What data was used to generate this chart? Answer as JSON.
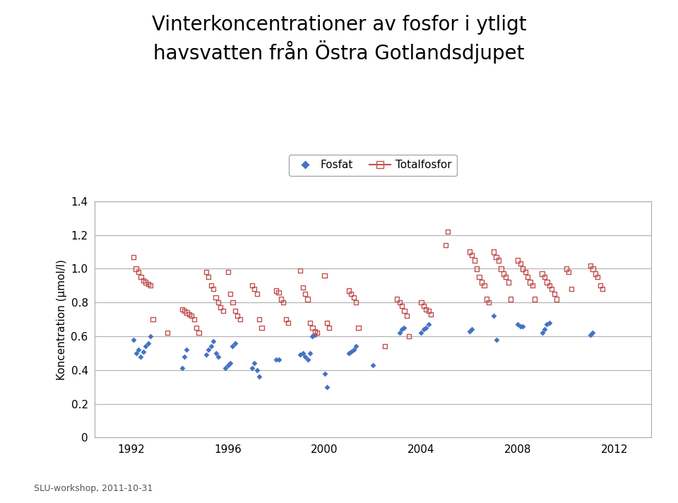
{
  "title": "Vinterkoncentrationer av fosfor i ytligt\nhavsvatten från Östra Gotlandsdjupet",
  "ylabel": "Koncentration (μmol/l)",
  "subtitle": "SLU-workshop, 2011-10-31",
  "xlim": [
    1990.5,
    2013.5
  ],
  "ylim": [
    0,
    1.4
  ],
  "yticks": [
    0,
    0.2,
    0.4,
    0.6,
    0.8,
    1.0,
    1.2,
    1.4
  ],
  "xticks": [
    1992,
    1996,
    2000,
    2004,
    2008,
    2012
  ],
  "fosfat_color": "#4472C4",
  "totalfosfor_color": "#C0504D",
  "fosfat_x": [
    1992.1,
    1992.2,
    1992.3,
    1992.4,
    1992.5,
    1992.6,
    1992.7,
    1992.8,
    1994.1,
    1994.2,
    1994.3,
    1995.1,
    1995.2,
    1995.3,
    1995.4,
    1995.5,
    1995.6,
    1995.9,
    1996.0,
    1996.1,
    1996.2,
    1996.3,
    1997.0,
    1997.1,
    1997.2,
    1997.3,
    1998.0,
    1998.1,
    1999.0,
    1999.1,
    1999.2,
    1999.3,
    1999.4,
    1999.5,
    1999.6,
    2000.0,
    2000.1,
    2001.0,
    2001.1,
    2001.2,
    2001.3,
    2002.0,
    2003.1,
    2003.2,
    2003.3,
    2004.0,
    2004.1,
    2004.2,
    2004.3,
    2006.0,
    2006.1,
    2007.0,
    2007.1,
    2008.0,
    2008.1,
    2008.2,
    2009.0,
    2009.1,
    2009.2,
    2009.3,
    2011.0,
    2011.1
  ],
  "fosfat_y": [
    0.58,
    0.5,
    0.52,
    0.48,
    0.51,
    0.54,
    0.56,
    0.6,
    0.41,
    0.48,
    0.52,
    0.49,
    0.52,
    0.54,
    0.57,
    0.5,
    0.48,
    0.41,
    0.43,
    0.44,
    0.54,
    0.56,
    0.41,
    0.44,
    0.4,
    0.36,
    0.46,
    0.46,
    0.49,
    0.5,
    0.48,
    0.46,
    0.5,
    0.6,
    0.61,
    0.38,
    0.3,
    0.5,
    0.51,
    0.52,
    0.54,
    0.43,
    0.62,
    0.64,
    0.65,
    0.62,
    0.64,
    0.65,
    0.67,
    0.63,
    0.64,
    0.72,
    0.58,
    0.67,
    0.66,
    0.66,
    0.62,
    0.64,
    0.67,
    0.68,
    0.61,
    0.62
  ],
  "totalfosfor_x": [
    1992.1,
    1992.2,
    1992.3,
    1992.4,
    1992.5,
    1992.6,
    1992.7,
    1992.8,
    1992.9,
    1993.5,
    1994.1,
    1994.2,
    1994.3,
    1994.4,
    1994.5,
    1994.6,
    1994.7,
    1994.8,
    1995.1,
    1995.2,
    1995.3,
    1995.4,
    1995.5,
    1995.6,
    1995.7,
    1995.8,
    1996.0,
    1996.1,
    1996.2,
    1996.3,
    1996.4,
    1996.5,
    1997.0,
    1997.1,
    1997.2,
    1997.3,
    1997.4,
    1998.0,
    1998.1,
    1998.2,
    1998.3,
    1998.4,
    1998.5,
    1999.0,
    1999.1,
    1999.2,
    1999.3,
    1999.4,
    1999.5,
    1999.6,
    1999.7,
    2000.0,
    2000.1,
    2000.2,
    2001.0,
    2001.1,
    2001.2,
    2001.3,
    2001.4,
    2002.5,
    2003.0,
    2003.1,
    2003.2,
    2003.3,
    2003.4,
    2003.5,
    2004.0,
    2004.1,
    2004.2,
    2004.3,
    2004.4,
    2005.0,
    2005.1,
    2006.0,
    2006.1,
    2006.2,
    2006.3,
    2006.4,
    2006.5,
    2006.6,
    2006.7,
    2006.8,
    2007.0,
    2007.1,
    2007.2,
    2007.3,
    2007.4,
    2007.5,
    2007.6,
    2007.7,
    2008.0,
    2008.1,
    2008.2,
    2008.3,
    2008.4,
    2008.5,
    2008.6,
    2008.7,
    2009.0,
    2009.1,
    2009.2,
    2009.3,
    2009.4,
    2009.5,
    2009.6,
    2010.0,
    2010.1,
    2010.2,
    2011.0,
    2011.1,
    2011.2,
    2011.3,
    2011.4,
    2011.5
  ],
  "totalfosfor_y": [
    1.07,
    1.0,
    0.98,
    0.95,
    0.93,
    0.92,
    0.91,
    0.9,
    0.7,
    0.62,
    0.76,
    0.75,
    0.74,
    0.73,
    0.72,
    0.7,
    0.65,
    0.62,
    0.98,
    0.95,
    0.9,
    0.88,
    0.83,
    0.8,
    0.77,
    0.75,
    0.98,
    0.85,
    0.8,
    0.75,
    0.72,
    0.7,
    0.9,
    0.88,
    0.85,
    0.7,
    0.65,
    0.87,
    0.86,
    0.82,
    0.8,
    0.7,
    0.68,
    0.99,
    0.89,
    0.85,
    0.82,
    0.68,
    0.65,
    0.63,
    0.62,
    0.96,
    0.68,
    0.65,
    0.87,
    0.85,
    0.83,
    0.8,
    0.65,
    0.54,
    0.82,
    0.8,
    0.78,
    0.75,
    0.72,
    0.6,
    0.8,
    0.78,
    0.76,
    0.75,
    0.73,
    1.14,
    1.22,
    1.1,
    1.08,
    1.05,
    1.0,
    0.95,
    0.92,
    0.9,
    0.82,
    0.8,
    1.1,
    1.07,
    1.05,
    1.0,
    0.97,
    0.95,
    0.92,
    0.82,
    1.05,
    1.03,
    1.0,
    0.98,
    0.95,
    0.92,
    0.9,
    0.82,
    0.97,
    0.95,
    0.92,
    0.9,
    0.88,
    0.85,
    0.82,
    1.0,
    0.98,
    0.88,
    1.02,
    1.0,
    0.97,
    0.95,
    0.9,
    0.88
  ]
}
